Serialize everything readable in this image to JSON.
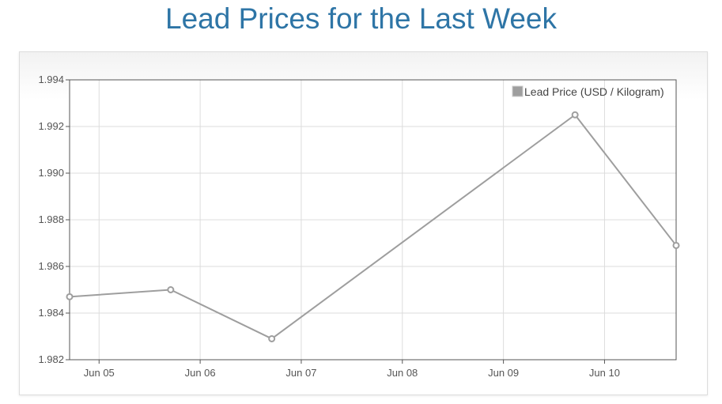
{
  "page": {
    "title": "Lead Prices for the Last Week"
  },
  "colors": {
    "title": "#2e75a6",
    "series": "#9e9e9e",
    "grid": "#dcdcdc",
    "axis": "#555555"
  },
  "chart_data": {
    "type": "line",
    "title": "Lead Prices for the Last Week",
    "xlabel": "",
    "ylabel": "",
    "x_axis": "date",
    "xlim": [
      "2015-06-04 17:00",
      "2015-06-10 17:00"
    ],
    "ylim": [
      1.982,
      1.994
    ],
    "yticks": [
      "1.982",
      "1.984",
      "1.986",
      "1.988",
      "1.990",
      "1.992",
      "1.994"
    ],
    "xticks": [
      {
        "label": "Jun 05",
        "date": "2015-06-05"
      },
      {
        "label": "Jun 06",
        "date": "2015-06-06"
      },
      {
        "label": "Jun 07",
        "date": "2015-06-07"
      },
      {
        "label": "Jun 08",
        "date": "2015-06-08"
      },
      {
        "label": "Jun 09",
        "date": "2015-06-09"
      },
      {
        "label": "Jun 10",
        "date": "2015-06-10"
      }
    ],
    "grid": true,
    "legend_position": "top-right",
    "series": [
      {
        "name": "Lead Price (USD / Kilogram)",
        "color": "#9e9e9e",
        "points": [
          {
            "x": "2015-06-04 17:00",
            "y": 1.9847
          },
          {
            "x": "2015-06-05 17:00",
            "y": 1.985
          },
          {
            "x": "2015-06-06 17:00",
            "y": 1.9829
          },
          {
            "x": "2015-06-09 17:00",
            "y": 1.9925
          },
          {
            "x": "2015-06-10 17:00",
            "y": 1.9869
          }
        ]
      }
    ]
  }
}
